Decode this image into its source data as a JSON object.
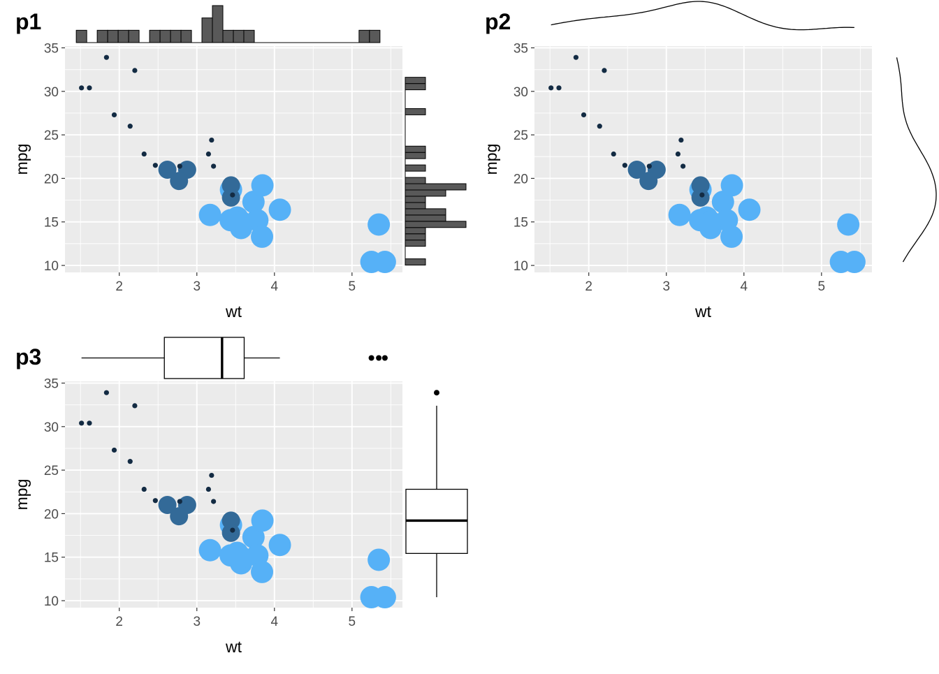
{
  "colors": {
    "panel_bg": "#ebebeb",
    "grid": "#ffffff",
    "hist_fill": "#595959",
    "point_low": "#132b43",
    "point_mid": "#336a98",
    "point_high": "#56b1f7"
  },
  "chart_data": [
    {
      "id": "p1",
      "tag": "p1",
      "type": "scatter",
      "marginal": "histogram",
      "xlabel": "wt",
      "ylabel": "mpg",
      "xlim": [
        1.3,
        5.65
      ],
      "ylim": [
        9.2,
        35.2
      ],
      "x_ticks": [
        2,
        3,
        4,
        5
      ],
      "y_ticks": [
        10,
        15,
        20,
        25,
        30,
        35
      ],
      "grid": true,
      "legend": "none",
      "marginal_bin_width": 0.135,
      "x_hist_counts": [
        1,
        0,
        1,
        1,
        1,
        1,
        0,
        1,
        1,
        1,
        1,
        0,
        2,
        3,
        1,
        1,
        1,
        0,
        0,
        0,
        0,
        0,
        0,
        0,
        0,
        0,
        0,
        1,
        1
      ],
      "y_hist_counts": [
        1,
        0,
        0,
        1,
        1,
        1,
        3,
        2,
        2,
        1,
        1,
        2,
        3,
        1,
        0,
        1,
        0,
        1,
        1,
        0,
        0,
        0,
        0,
        0,
        1,
        0,
        0,
        0,
        1,
        1
      ]
    },
    {
      "id": "p2",
      "tag": "p2",
      "type": "scatter",
      "marginal": "density",
      "xlabel": "wt",
      "ylabel": "mpg",
      "xlim": [
        1.3,
        5.65
      ],
      "ylim": [
        9.2,
        35.2
      ],
      "x_ticks": [
        2,
        3,
        4,
        5
      ],
      "y_ticks": [
        10,
        15,
        20,
        25,
        30,
        35
      ],
      "grid": true,
      "legend": "none"
    },
    {
      "id": "p3",
      "tag": "p3",
      "type": "scatter",
      "marginal": "boxplot",
      "xlabel": "wt",
      "ylabel": "mpg",
      "xlim": [
        1.3,
        5.65
      ],
      "ylim": [
        9.2,
        35.2
      ],
      "x_ticks": [
        2,
        3,
        4,
        5
      ],
      "y_ticks": [
        10,
        15,
        20,
        25,
        30,
        35
      ],
      "grid": true,
      "legend": "none",
      "x_box": {
        "whisker_low": 1.513,
        "q1": 2.581,
        "median": 3.325,
        "q3": 3.61,
        "whisker_high": 4.07,
        "outliers": [
          5.25,
          5.345,
          5.424
        ]
      },
      "y_box": {
        "whisker_low": 10.4,
        "q1": 15.43,
        "median": 19.2,
        "q3": 22.8,
        "whisker_high": 32.4,
        "outliers": [
          33.9
        ]
      }
    }
  ],
  "points": [
    {
      "wt": 2.62,
      "mpg": 21.0,
      "size": 8
    },
    {
      "wt": 2.875,
      "mpg": 21.0,
      "size": 8
    },
    {
      "wt": 2.32,
      "mpg": 22.8,
      "size": 1
    },
    {
      "wt": 3.215,
      "mpg": 21.4,
      "size": 1
    },
    {
      "wt": 3.44,
      "mpg": 18.7,
      "size": 16
    },
    {
      "wt": 3.46,
      "mpg": 18.1,
      "size": 1
    },
    {
      "wt": 3.57,
      "mpg": 14.3,
      "size": 16
    },
    {
      "wt": 3.19,
      "mpg": 24.4,
      "size": 1
    },
    {
      "wt": 3.15,
      "mpg": 22.8,
      "size": 1
    },
    {
      "wt": 3.44,
      "mpg": 19.2,
      "size": 8
    },
    {
      "wt": 3.44,
      "mpg": 17.8,
      "size": 8
    },
    {
      "wt": 4.07,
      "mpg": 16.4,
      "size": 16
    },
    {
      "wt": 3.73,
      "mpg": 17.3,
      "size": 16
    },
    {
      "wt": 3.78,
      "mpg": 15.2,
      "size": 16
    },
    {
      "wt": 5.25,
      "mpg": 10.4,
      "size": 16
    },
    {
      "wt": 5.424,
      "mpg": 10.4,
      "size": 16
    },
    {
      "wt": 5.345,
      "mpg": 14.7,
      "size": 16
    },
    {
      "wt": 2.2,
      "mpg": 32.4,
      "size": 1
    },
    {
      "wt": 1.615,
      "mpg": 30.4,
      "size": 1
    },
    {
      "wt": 1.835,
      "mpg": 33.9,
      "size": 1
    },
    {
      "wt": 2.465,
      "mpg": 21.5,
      "size": 1
    },
    {
      "wt": 3.52,
      "mpg": 15.5,
      "size": 16
    },
    {
      "wt": 3.435,
      "mpg": 15.2,
      "size": 16
    },
    {
      "wt": 3.84,
      "mpg": 13.3,
      "size": 16
    },
    {
      "wt": 3.845,
      "mpg": 19.2,
      "size": 16
    },
    {
      "wt": 1.935,
      "mpg": 27.3,
      "size": 1
    },
    {
      "wt": 2.14,
      "mpg": 26.0,
      "size": 1
    },
    {
      "wt": 1.513,
      "mpg": 30.4,
      "size": 1
    },
    {
      "wt": 3.17,
      "mpg": 15.8,
      "size": 16
    },
    {
      "wt": 2.77,
      "mpg": 19.7,
      "size": 8
    },
    {
      "wt": 3.57,
      "mpg": 15.0,
      "size": 16
    },
    {
      "wt": 2.78,
      "mpg": 21.4,
      "size": 1
    }
  ]
}
